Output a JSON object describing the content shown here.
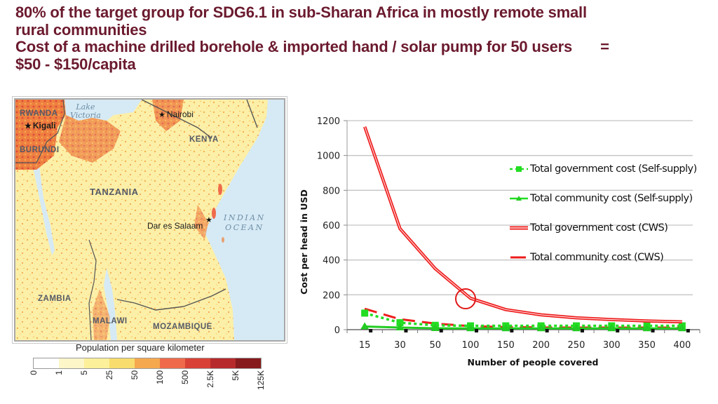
{
  "heading": {
    "line1": "80% of the target group for SDG6.1 in sub-Sharan Africa in mostly remote small",
    "line2": "rural communities",
    "line3": "Cost of a machine drilled borehole & imported hand / solar pump for 50 users",
    "line3_eq": "=",
    "line4": "$50 - $150/capita"
  },
  "map": {
    "labels": {
      "rwanda": "RWANDA",
      "kigali": "Kigali",
      "burundi": "BURUNDI",
      "lake_victoria_1": "Lake",
      "lake_victoria_2": "Victoria",
      "nairobi": "Nairobi",
      "kenya": "KENYA",
      "tanzania": "TANZANIA",
      "dar_es_salaam": "Dar es Salaam",
      "indian_1": "INDIAN",
      "indian_2": "OCEAN",
      "zambia": "ZAMBIA",
      "malawi": "MALAWI",
      "mozambique": "MOZAMBIQUE"
    },
    "colors": {
      "water": "#d6eaf5",
      "land_low": "#fdf3b8",
      "land_mid": "#f6c35a",
      "land_high": "#e8602c",
      "border": "#555555"
    },
    "scale": {
      "title": "Population per square kilometer",
      "swatches": [
        "#ffffff",
        "#fdf6c9",
        "#fdf09a",
        "#f8dd6e",
        "#f6a84f",
        "#ef6a4a",
        "#d94136",
        "#b72a2c",
        "#861a1c"
      ],
      "ticks": [
        "0",
        "1",
        "5",
        "25",
        "50",
        "100",
        "500",
        "2.5K",
        "5K",
        "125K"
      ]
    }
  },
  "chart_data": {
    "type": "line",
    "title": "",
    "xlabel": "Number of people covered",
    "ylabel": "Cost per head in USD",
    "categories": [
      "15",
      "30",
      "50",
      "100",
      "150",
      "200",
      "250",
      "300",
      "350",
      "400"
    ],
    "ylim": [
      0,
      1200
    ],
    "yticks": [
      "0",
      "200",
      "400",
      "600",
      "800",
      "1000",
      "1200"
    ],
    "grid": true,
    "legend_position": "right",
    "annotation": "circle around x=100 on Total government cost (CWS)",
    "series": [
      {
        "name": "Total government cost (Self-supply)",
        "color": "#22dd22",
        "style": "dashed-square",
        "values": [
          95,
          40,
          25,
          22,
          22,
          22,
          22,
          22,
          22,
          22
        ]
      },
      {
        "name": "Total community cost (Self-supply)",
        "color": "#22cc22",
        "style": "solid-triangle",
        "values": [
          18,
          12,
          8,
          7,
          7,
          7,
          7,
          7,
          7,
          7
        ]
      },
      {
        "name": "Total government cost (CWS)",
        "color": "#ee1c1c",
        "style": "double-line",
        "values": [
          1165,
          580,
          350,
          180,
          115,
          85,
          68,
          58,
          50,
          45
        ]
      },
      {
        "name": "Total community cost (CWS)",
        "color": "#ee1c1c",
        "style": "dashed",
        "values": [
          120,
          60,
          35,
          20,
          15,
          13,
          12,
          12,
          12,
          12
        ]
      }
    ]
  }
}
